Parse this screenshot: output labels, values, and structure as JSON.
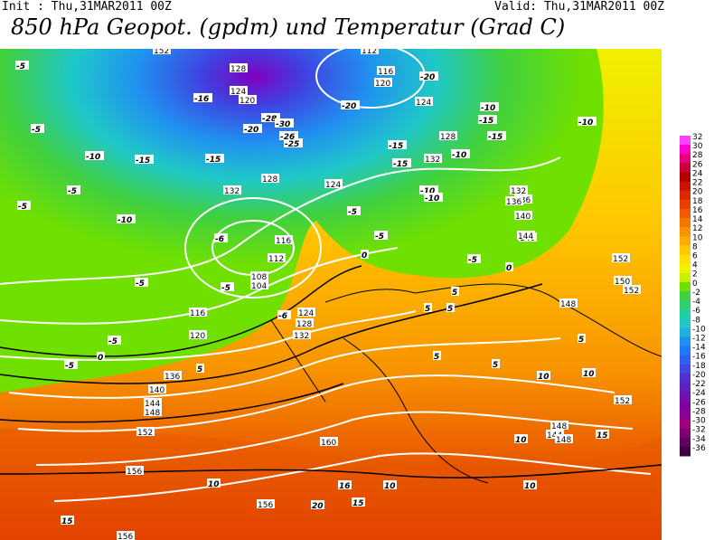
{
  "header": {
    "init": "Init : Thu,31MAR2011 00Z",
    "valid": "Valid: Thu,31MAR2011 00Z",
    "title": "850 hPa Geopot. (gpdm) und Temperatur (Grad C)"
  },
  "scale": {
    "unit": "Grad C",
    "labels": [
      "32",
      "30",
      "28",
      "26",
      "24",
      "22",
      "20",
      "18",
      "16",
      "14",
      "12",
      "10",
      "8",
      "6",
      "4",
      "2",
      "0",
      "-2",
      "-4",
      "-6",
      "-8",
      "-10",
      "-12",
      "-14",
      "-16",
      "-18",
      "-20",
      "-22",
      "-24",
      "-26",
      "-28",
      "-30",
      "-32",
      "-34",
      "-36"
    ],
    "colors": [
      "#ff40ff",
      "#ff00cc",
      "#e8007a",
      "#c8003c",
      "#b00000",
      "#c81400",
      "#dc2800",
      "#e84000",
      "#f05a00",
      "#f47800",
      "#f89400",
      "#fcae00",
      "#ffc800",
      "#ffe000",
      "#f0f000",
      "#c8f000",
      "#70e000",
      "#40d040",
      "#30d070",
      "#20d0a0",
      "#20c8c8",
      "#20b0e0",
      "#2090f0",
      "#2078f8",
      "#3060f0",
      "#4048e0",
      "#5030d0",
      "#6020c0",
      "#7010b0",
      "#8000a0",
      "#900090",
      "#a00080",
      "#800070",
      "#600060",
      "#400040"
    ]
  },
  "map": {
    "geopotential_labels": [
      "152",
      "128",
      "124",
      "120",
      "116",
      "112",
      "108",
      "104",
      "116",
      "120",
      "124",
      "128",
      "132",
      "136",
      "140",
      "144",
      "148",
      "152",
      "156",
      "160",
      "156",
      "152",
      "148",
      "144",
      "140",
      "136",
      "132",
      "128",
      "124",
      "120",
      "112",
      "116",
      "124",
      "128",
      "132",
      "132",
      "136",
      "140",
      "144",
      "152",
      "148",
      "152",
      "148",
      "156",
      "150"
    ],
    "temperature_labels": [
      "-5",
      "-5",
      "-10",
      "-15",
      "-16",
      "-20",
      "-25",
      "-20",
      "-28",
      "-30",
      "-26",
      "-20",
      "-15",
      "-10",
      "-15",
      "-15",
      "-10",
      "-5",
      "-5",
      "-10",
      "-5",
      "-5",
      "-10",
      "-15",
      "-5",
      "-5",
      "0",
      "-5",
      "0",
      "5",
      "5",
      "5",
      "5",
      "10",
      "10",
      "10",
      "15",
      "15",
      "20",
      "16",
      "10",
      "10",
      "5",
      "-5",
      "-10",
      "-15",
      "-10",
      "-6",
      "-6",
      "-5",
      "0",
      "5",
      "5",
      "15",
      "10"
    ],
    "colors": {
      "outside": "#ffffff",
      "border": "#000000",
      "isohypse": "#ffffff",
      "isotherm": "#000000"
    }
  }
}
